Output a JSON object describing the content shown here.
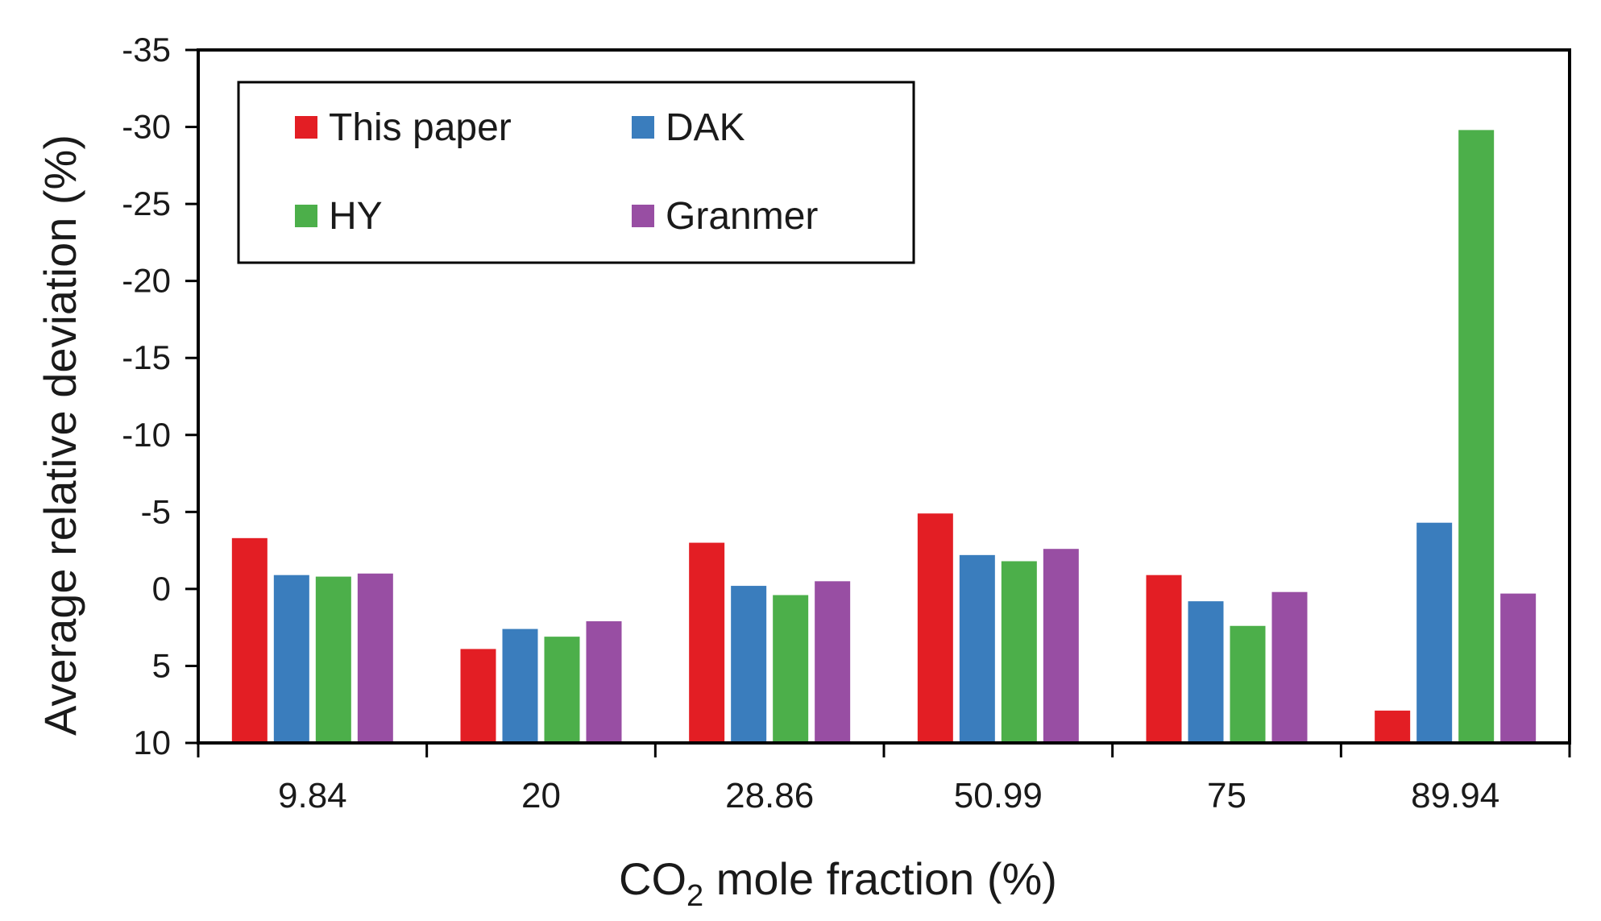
{
  "chart_data": {
    "type": "bar",
    "title": "",
    "xlabel_main": "CO",
    "xlabel_sub": "2",
    "xlabel_rest": " mole fraction (%)",
    "ylabel": "Average relative deviation (%)",
    "categories": [
      "9.84",
      "20",
      "28.86",
      "50.99",
      "75",
      "89.94"
    ],
    "y_axis": {
      "top": -35,
      "bottom": 10,
      "inverted": true,
      "step": 5
    },
    "y_ticks": [
      "-35",
      "-30",
      "-25",
      "-20",
      "-15",
      "-10",
      "-5",
      "0",
      "5",
      "10"
    ],
    "legend_position": "top-left",
    "series": [
      {
        "name": "This paper",
        "color": "#e31e24",
        "values": [
          -3.3,
          3.9,
          -3.0,
          -4.9,
          -0.9,
          7.9
        ]
      },
      {
        "name": "DAK",
        "color": "#3a7dbd",
        "values": [
          -0.9,
          2.6,
          -0.2,
          -2.2,
          0.8,
          -4.3
        ]
      },
      {
        "name": "HY",
        "color": "#4caf4a",
        "values": [
          -0.8,
          3.1,
          0.4,
          -1.8,
          2.4,
          -29.8
        ]
      },
      {
        "name": "Granmer",
        "color": "#984ea3",
        "values": [
          -1.0,
          2.1,
          -0.5,
          -2.6,
          0.2,
          0.3
        ]
      }
    ]
  }
}
